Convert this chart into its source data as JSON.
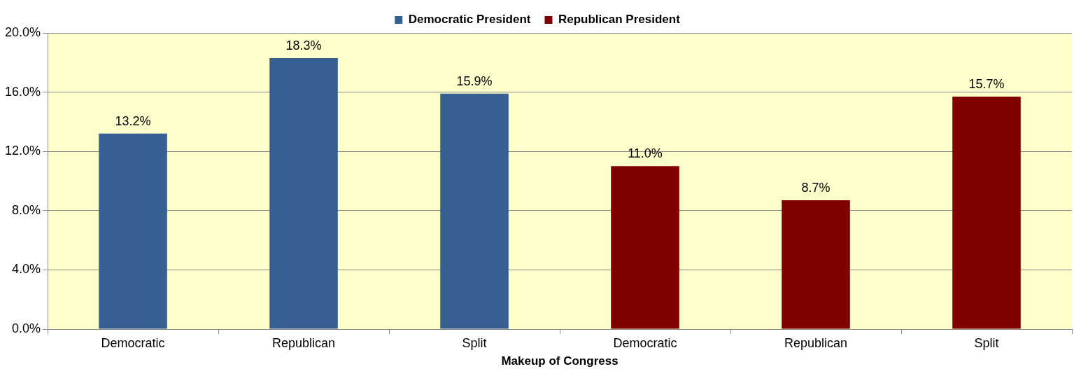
{
  "chart_data": {
    "type": "bar",
    "xlabel": "Makeup of Congress",
    "categories": [
      "Democratic",
      "Republican",
      "Split",
      "Democratic",
      "Republican",
      "Split"
    ],
    "series": [
      {
        "name": "Democratic President",
        "color": "#376092",
        "values": [
          13.2,
          18.3,
          15.9,
          null,
          null,
          null
        ],
        "value_labels": [
          "13.2%",
          "18.3%",
          "15.9%",
          null,
          null,
          null
        ]
      },
      {
        "name": "Republican President",
        "color": "#800000",
        "values": [
          null,
          null,
          null,
          11.0,
          8.7,
          15.7
        ],
        "value_labels": [
          null,
          null,
          null,
          "11.0%",
          "8.7%",
          "15.7%"
        ]
      }
    ],
    "ylim": [
      0,
      20
    ],
    "yticks": [
      {
        "value": 0,
        "label": "0.0%"
      },
      {
        "value": 4,
        "label": "4.0%"
      },
      {
        "value": 8,
        "label": "8.0%"
      },
      {
        "value": 12,
        "label": "12.0%"
      },
      {
        "value": 16,
        "label": "16.0%"
      },
      {
        "value": 20,
        "label": "20.0%"
      }
    ],
    "grid": "y",
    "legend": "top"
  }
}
